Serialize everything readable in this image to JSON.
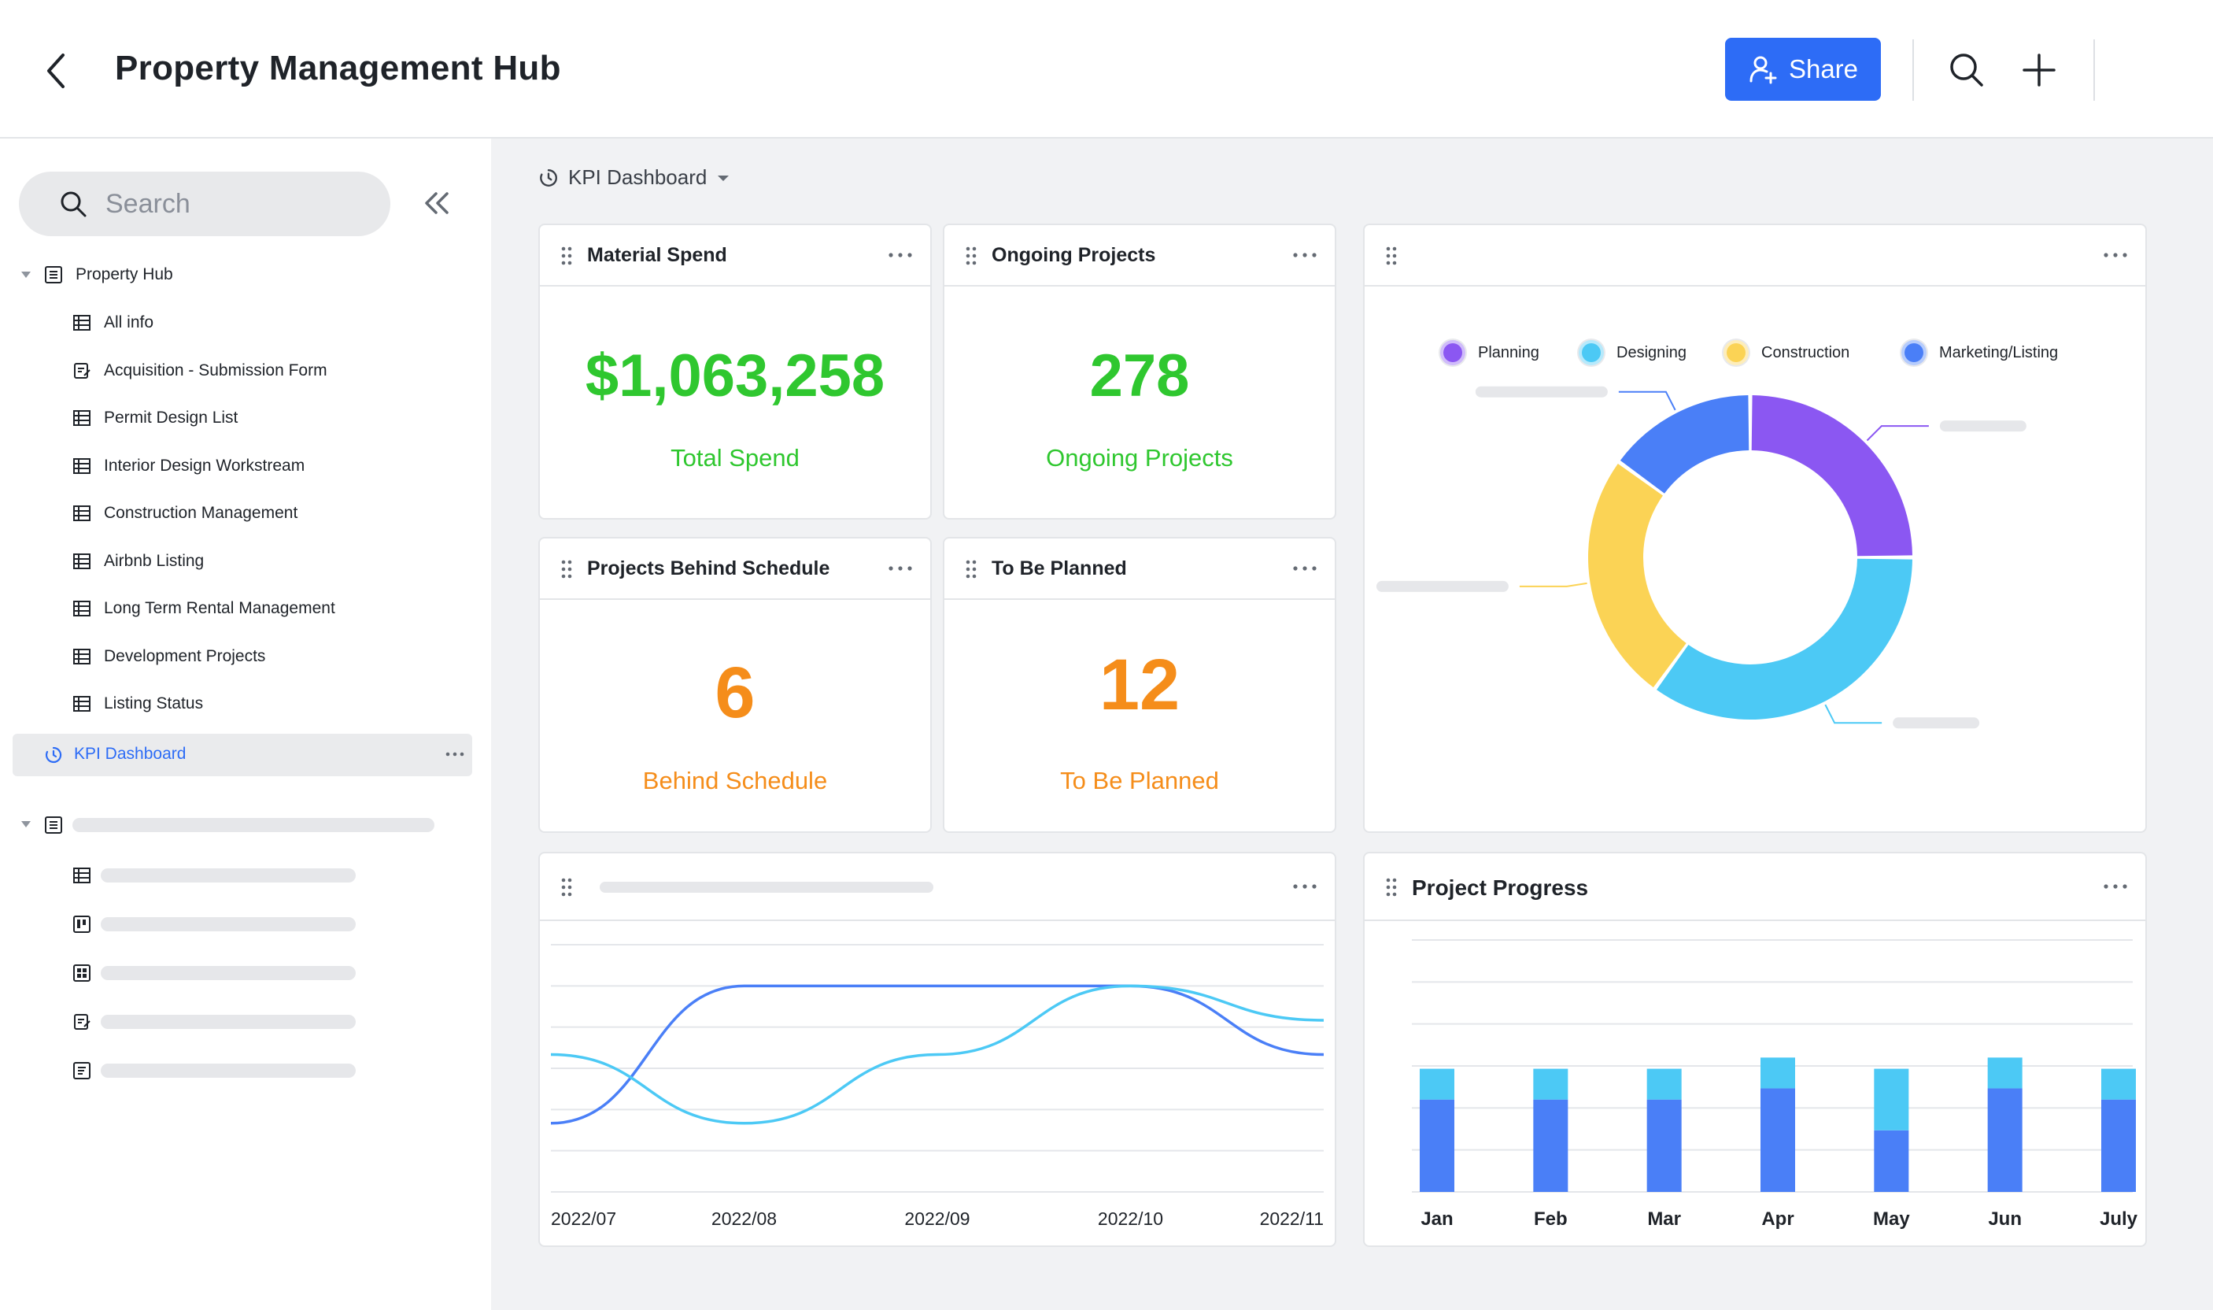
{
  "header": {
    "title": "Property Management Hub",
    "share_label": "Share",
    "icons": [
      "chevron-left-icon",
      "add-user-icon",
      "search-icon",
      "plus-icon"
    ]
  },
  "sidebar": {
    "search_placeholder": "Search",
    "root": "Property Hub",
    "items": [
      {
        "label": "All info",
        "icon": "table-icon"
      },
      {
        "label": "Acquisition - Submission Form",
        "icon": "form-icon"
      },
      {
        "label": "Permit Design List",
        "icon": "table-icon"
      },
      {
        "label": "Interior Design Workstream",
        "icon": "table-icon"
      },
      {
        "label": "Construction Management",
        "icon": "table-icon"
      },
      {
        "label": "Airbnb Listing",
        "icon": "table-icon"
      },
      {
        "label": "Long Term Rental Management",
        "icon": "table-icon"
      },
      {
        "label": "Development Projects",
        "icon": "table-icon"
      },
      {
        "label": "Listing Status",
        "icon": "table-icon"
      }
    ],
    "active_item": "KPI Dashboard"
  },
  "main": {
    "breadcrumb": "KPI Dashboard",
    "cards": [
      {
        "title": "Material Spend",
        "value": "$1,063,258",
        "label": "Total Spend",
        "color": "#2fc72f"
      },
      {
        "title": "Ongoing Projects",
        "value": "278",
        "label": "Ongoing Projects",
        "color": "#2fc72f"
      },
      {
        "title": "Projects Behind Schedule",
        "value": "6",
        "label": "Behind Schedule",
        "color": "#f58d1a"
      },
      {
        "title": "To Be Planned",
        "value": "12",
        "label": "To Be Planned",
        "color": "#f58d1a"
      }
    ],
    "bar_card_title": "Project Progress"
  },
  "colors": {
    "accent": "#2d6cf6",
    "green": "#2fc72f",
    "orange": "#f58d1a",
    "purple": "#8b57f2",
    "cyan": "#4cc9f5",
    "yellow": "#fbd355",
    "blue": "#4a7ff7"
  },
  "chart_data": [
    {
      "type": "pie",
      "title": "",
      "labels": [
        "Planning",
        "Designing",
        "Construction",
        "Marketing/Listing"
      ],
      "values": [
        25,
        35,
        25,
        15
      ],
      "colors": [
        "#8b57f2",
        "#4cc9f5",
        "#fbd355",
        "#4a7ff7"
      ],
      "legend": "top"
    },
    {
      "type": "line",
      "title": "",
      "x": [
        "2022/07",
        "2022/08",
        "2022/09",
        "2022/10",
        "2022/11"
      ],
      "series": [
        {
          "values": [
            1,
            3,
            3,
            3,
            2
          ],
          "color": "#4a7ff7"
        },
        {
          "values": [
            2,
            1,
            2,
            3,
            2.5
          ],
          "color": "#4cc9f5"
        }
      ],
      "grid": true
    },
    {
      "type": "bar",
      "title": "Project Progress",
      "categories": [
        "Jan",
        "Feb",
        "Mar",
        "Apr",
        "May",
        "Jun",
        "July"
      ],
      "series": [
        {
          "values": [
            3.3,
            3.3,
            3.3,
            3.7,
            2.2,
            3.7,
            3.3
          ],
          "color": "#4a7ff7"
        },
        {
          "values": [
            1.1,
            1.1,
            1.1,
            1.1,
            2.2,
            1.1,
            1.1
          ],
          "color": "#4cc9f5"
        }
      ],
      "ylim": [
        0,
        9
      ],
      "grid": true
    }
  ]
}
